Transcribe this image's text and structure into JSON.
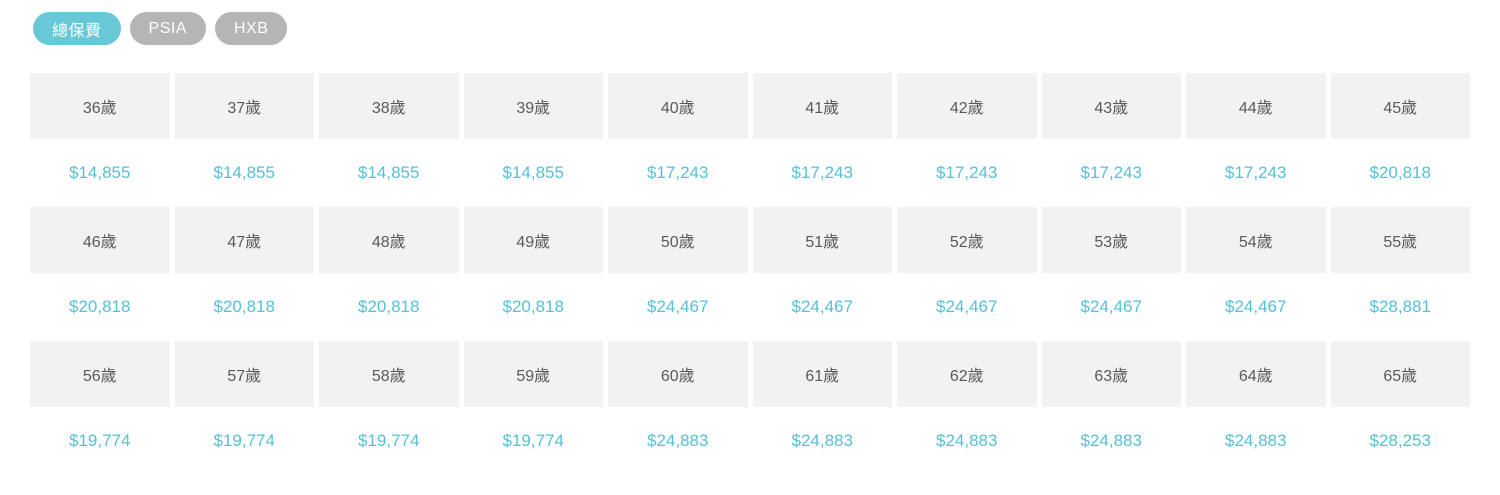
{
  "colors": {
    "accent": "#68c8d7",
    "inactive-pill": "#b5b5b5",
    "cell-bg": "#f2f2f2",
    "age-text": "#58595b",
    "price-text": "#55c1d6"
  },
  "tabs": [
    {
      "id": "total-premium",
      "label": "總保費",
      "active": true
    },
    {
      "id": "psia",
      "label": "PSIA",
      "active": false
    },
    {
      "id": "hxb",
      "label": "HXB",
      "active": false
    }
  ],
  "chart_data": {
    "type": "table",
    "description": "Annual premium by age, shown as alternating age-header and price rows",
    "rows": [
      {
        "type": "age",
        "cells": [
          "36歲",
          "37歲",
          "38歲",
          "39歲",
          "40歲",
          "41歲",
          "42歲",
          "43歲",
          "44歲",
          "45歲"
        ]
      },
      {
        "type": "price",
        "cells": [
          "$14,855",
          "$14,855",
          "$14,855",
          "$14,855",
          "$17,243",
          "$17,243",
          "$17,243",
          "$17,243",
          "$17,243",
          "$20,818"
        ]
      },
      {
        "type": "age",
        "cells": [
          "46歲",
          "47歲",
          "48歲",
          "49歲",
          "50歲",
          "51歲",
          "52歲",
          "53歲",
          "54歲",
          "55歲"
        ]
      },
      {
        "type": "price",
        "cells": [
          "$20,818",
          "$20,818",
          "$20,818",
          "$20,818",
          "$24,467",
          "$24,467",
          "$24,467",
          "$24,467",
          "$24,467",
          "$28,881"
        ]
      },
      {
        "type": "age",
        "cells": [
          "56歲",
          "57歲",
          "58歲",
          "59歲",
          "60歲",
          "61歲",
          "62歲",
          "63歲",
          "64歲",
          "65歲"
        ]
      },
      {
        "type": "price",
        "cells": [
          "$19,774",
          "$19,774",
          "$19,774",
          "$19,774",
          "$24,883",
          "$24,883",
          "$24,883",
          "$24,883",
          "$24,883",
          "$28,253"
        ]
      }
    ]
  }
}
